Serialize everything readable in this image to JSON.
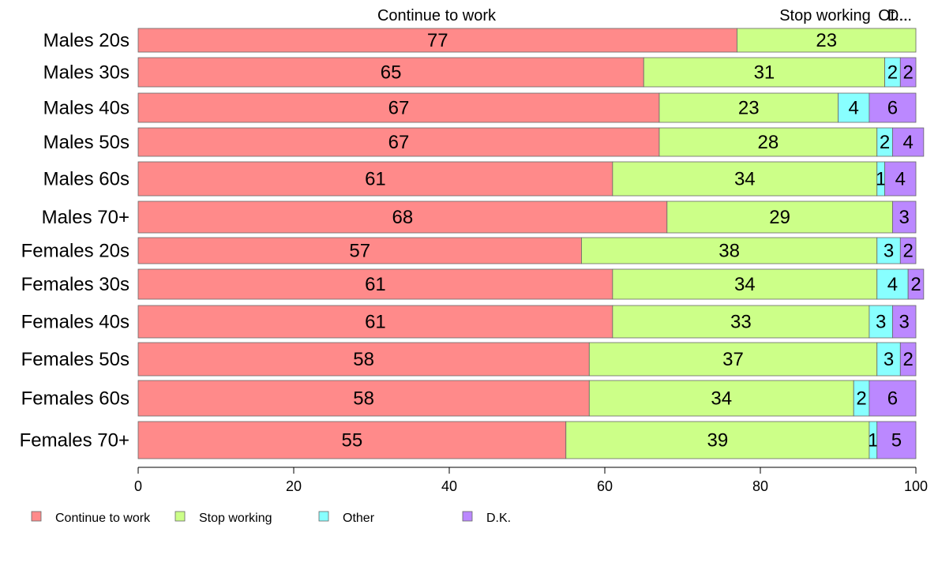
{
  "chart_data": {
    "type": "bar",
    "orientation": "horizontal",
    "stacked": true,
    "categories": [
      "Males 20s",
      "Males 30s",
      "Males 40s",
      "Males 50s",
      "Males 60s",
      "Males 70+",
      "Females 20s",
      "Females 30s",
      "Females 40s",
      "Females 50s",
      "Females 60s",
      "Females 70+"
    ],
    "series": [
      {
        "name": "Continue to work",
        "color": "#FF8A8A",
        "values": [
          77,
          65,
          67,
          67,
          61,
          68,
          57,
          61,
          61,
          58,
          58,
          55
        ]
      },
      {
        "name": "Stop working",
        "color": "#CCFF88",
        "values": [
          23,
          31,
          23,
          28,
          34,
          29,
          38,
          34,
          33,
          37,
          34,
          39
        ]
      },
      {
        "name": "Other",
        "color": "#88FFFF",
        "values": [
          0,
          2,
          4,
          2,
          1,
          0,
          3,
          4,
          3,
          3,
          2,
          1
        ]
      },
      {
        "name": "D.K.",
        "color": "#BB88FF",
        "values": [
          0,
          2,
          6,
          4,
          4,
          3,
          2,
          2,
          3,
          2,
          6,
          5
        ]
      }
    ],
    "top_labels": [
      "Continue to work",
      "Stop working",
      "Ot...",
      "D..."
    ],
    "xlim": [
      0,
      100
    ],
    "xticks": [
      0,
      20,
      40,
      60,
      80,
      100
    ],
    "grid": false,
    "legend_position": "bottom"
  }
}
